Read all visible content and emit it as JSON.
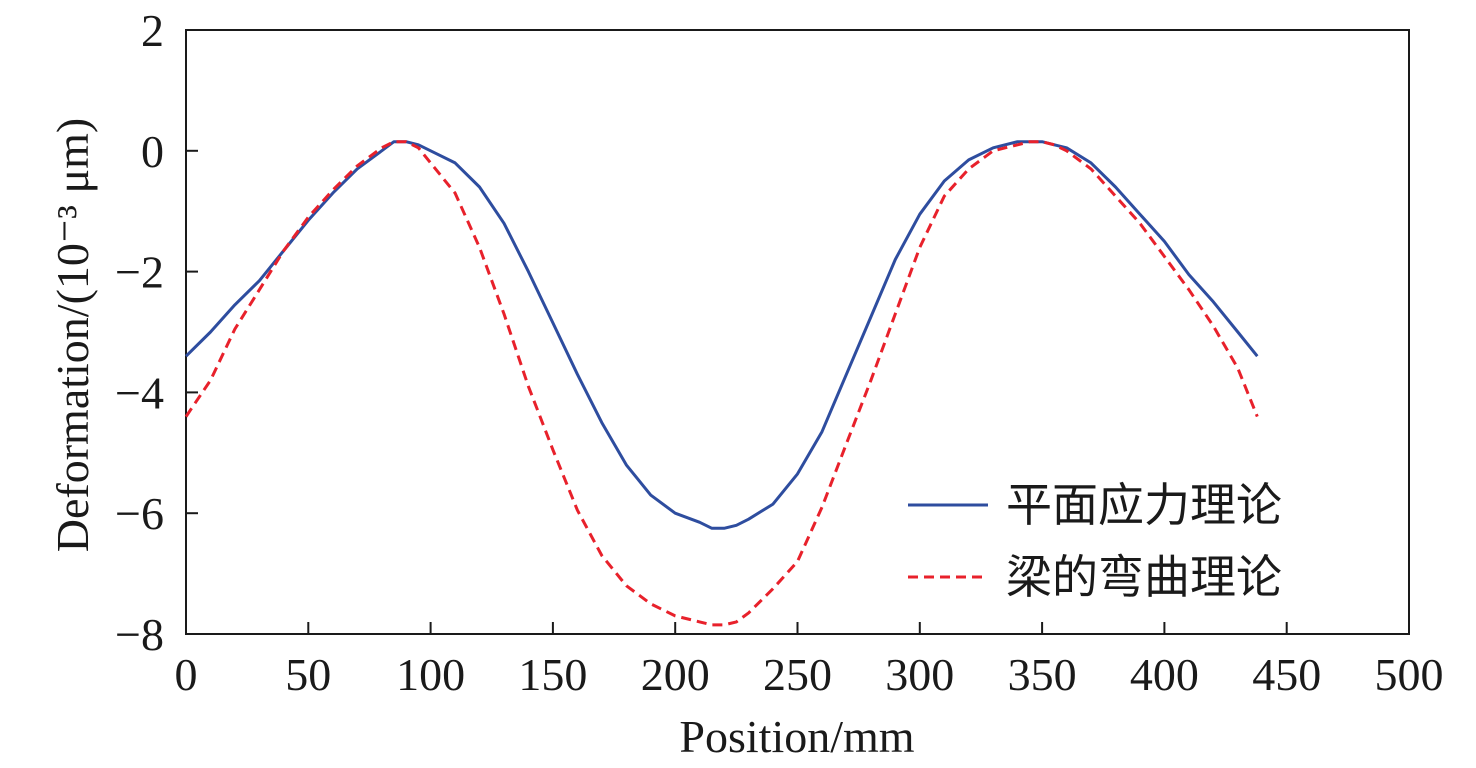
{
  "chart_data": {
    "type": "line",
    "title": "",
    "xlabel": "Position/mm",
    "ylabel": "Deformation/(10⁻³ μm)",
    "xlim": [
      0,
      500
    ],
    "ylim": [
      -8,
      2
    ],
    "xticks": [
      0,
      50,
      100,
      150,
      200,
      250,
      300,
      350,
      400,
      450,
      500
    ],
    "yticks": [
      -8,
      -6,
      -4,
      -2,
      0,
      2
    ],
    "xtick_labels": [
      "0",
      "50",
      "100",
      "150",
      "200",
      "250",
      "300",
      "350",
      "400",
      "450",
      "500"
    ],
    "ytick_labels": [
      "−8",
      "−6",
      "−4",
      "−2",
      "0",
      "2"
    ],
    "grid": false,
    "legend_position": "bottom-right",
    "series": [
      {
        "name": "平面应力理论",
        "color": "#2e4d9f",
        "style": "solid",
        "x": [
          0,
          10,
          20,
          30,
          40,
          50,
          60,
          70,
          80,
          85,
          90,
          95,
          100,
          110,
          120,
          130,
          140,
          150,
          160,
          170,
          180,
          190,
          200,
          210,
          215,
          220,
          225,
          230,
          240,
          250,
          260,
          270,
          280,
          290,
          300,
          310,
          320,
          330,
          340,
          345,
          350,
          355,
          360,
          370,
          380,
          390,
          400,
          410,
          420,
          430,
          438
        ],
        "y": [
          -3.4,
          -3.0,
          -2.55,
          -2.15,
          -1.65,
          -1.15,
          -0.7,
          -0.3,
          0.0,
          0.15,
          0.15,
          0.1,
          0.0,
          -0.2,
          -0.6,
          -1.2,
          -2.0,
          -2.85,
          -3.7,
          -4.5,
          -5.2,
          -5.7,
          -6.0,
          -6.15,
          -6.25,
          -6.25,
          -6.2,
          -6.1,
          -5.85,
          -5.35,
          -4.65,
          -3.7,
          -2.75,
          -1.8,
          -1.05,
          -0.5,
          -0.15,
          0.05,
          0.15,
          0.15,
          0.15,
          0.1,
          0.05,
          -0.2,
          -0.6,
          -1.05,
          -1.5,
          -2.05,
          -2.5,
          -3.0,
          -3.4
        ]
      },
      {
        "name": "梁的弯曲理论",
        "color": "#e8212b",
        "style": "dashed",
        "x": [
          0,
          10,
          20,
          30,
          40,
          50,
          60,
          70,
          80,
          85,
          90,
          95,
          100,
          110,
          120,
          130,
          140,
          150,
          160,
          170,
          180,
          190,
          200,
          210,
          215,
          220,
          225,
          230,
          240,
          250,
          260,
          270,
          280,
          290,
          300,
          310,
          320,
          330,
          340,
          345,
          350,
          355,
          360,
          370,
          380,
          390,
          400,
          410,
          420,
          430,
          438
        ],
        "y": [
          -4.4,
          -3.8,
          -2.95,
          -2.3,
          -1.65,
          -1.1,
          -0.65,
          -0.25,
          0.05,
          0.15,
          0.15,
          0.05,
          -0.2,
          -0.7,
          -1.6,
          -2.7,
          -3.9,
          -4.95,
          -5.95,
          -6.7,
          -7.2,
          -7.5,
          -7.7,
          -7.8,
          -7.85,
          -7.85,
          -7.8,
          -7.65,
          -7.25,
          -6.8,
          -5.9,
          -4.85,
          -3.8,
          -2.7,
          -1.6,
          -0.75,
          -0.3,
          0.0,
          0.1,
          0.15,
          0.15,
          0.1,
          0.0,
          -0.3,
          -0.75,
          -1.2,
          -1.75,
          -2.3,
          -2.9,
          -3.6,
          -4.4
        ]
      }
    ]
  }
}
